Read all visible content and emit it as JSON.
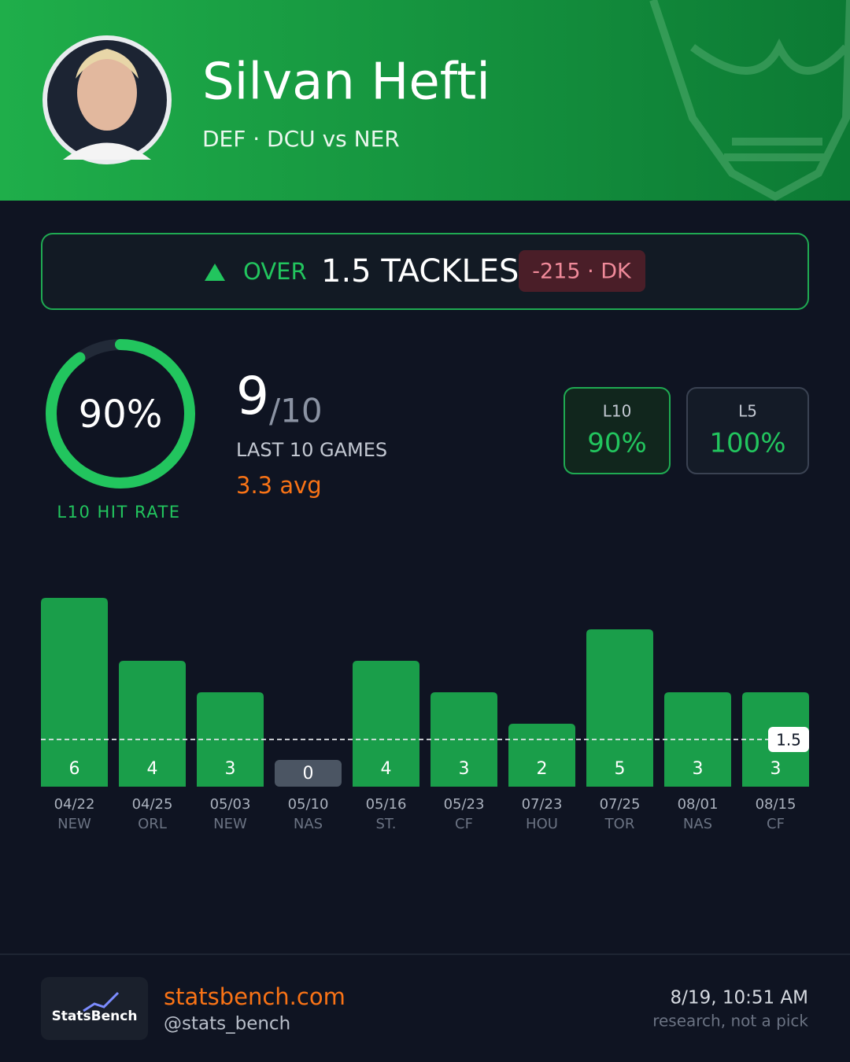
{
  "header": {
    "name": "Silvan Hefti",
    "subtitle": "DEF · DCU vs NER"
  },
  "prop": {
    "direction": "OVER",
    "line_text": "1.5 TACKLES",
    "odds": "-215 · DK"
  },
  "hit_rate": {
    "value": 90,
    "label": "90%",
    "caption": "L10 HIT RATE"
  },
  "record": {
    "hits": "9",
    "total": "/10",
    "caption": "LAST 10 GAMES",
    "avg": "3.3 avg"
  },
  "splits": [
    {
      "name": "L10",
      "value": "90%"
    },
    {
      "name": "L5",
      "value": "100%"
    }
  ],
  "chart_data": {
    "type": "bar",
    "categories": [
      "04/22",
      "04/25",
      "05/03",
      "05/10",
      "05/16",
      "05/23",
      "07/23",
      "07/25",
      "08/01",
      "08/15"
    ],
    "opponents": [
      "NEW",
      "ORL",
      "NEW",
      "NAS",
      "ST.",
      "CF",
      "HOU",
      "TOR",
      "NAS",
      "CF"
    ],
    "values": [
      6,
      4,
      3,
      0,
      4,
      3,
      2,
      5,
      3,
      3
    ],
    "line": 1.5,
    "ylim": [
      0,
      6
    ],
    "color": "#1a9e4a",
    "miss_color": "#4b5563"
  },
  "footer": {
    "logo": "StatsBench",
    "site": "statsbench.com",
    "handle": "@stats_bench",
    "timestamp": "8/19, 10:51 AM",
    "disclaimer": "research, not a pick"
  }
}
